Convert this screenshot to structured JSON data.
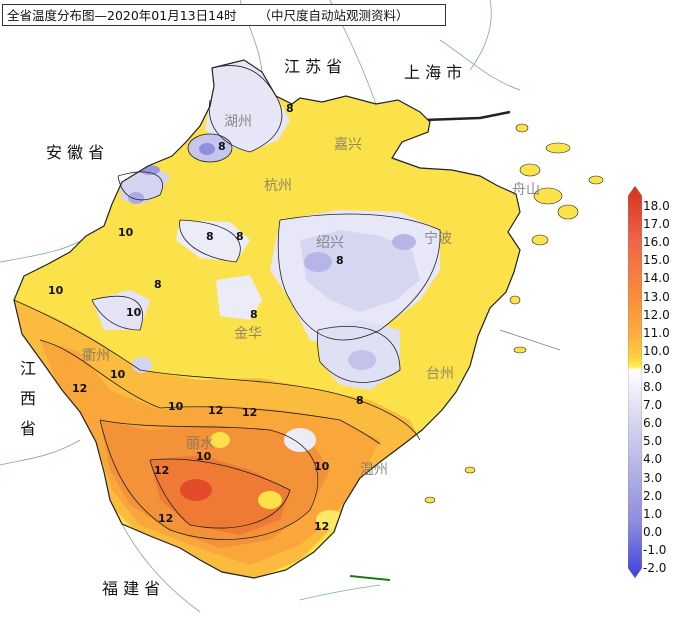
{
  "title": {
    "main": "全省温度分布图—2020年01月13日14时",
    "source": "（中尺度自动站观测资料）"
  },
  "regions": {
    "jiangsu": "江 苏 省",
    "shanghai": "上 海 市",
    "anhui": "安 徽 省",
    "jiangxi": [
      "江",
      "西",
      "省"
    ],
    "fujian": "福 建 省"
  },
  "cities": [
    "湖州",
    "嘉兴",
    "杭州",
    "绍兴",
    "宁波",
    "金华",
    "衢州",
    "台州",
    "丽水",
    "温州",
    "舟山"
  ],
  "contour_labels": [
    "8",
    "10",
    "12"
  ],
  "legend": {
    "ticks": [
      "18.0",
      "17.0",
      "16.0",
      "15.0",
      "14.0",
      "13.0",
      "12.0",
      "11.0",
      "10.0",
      "9.0",
      "8.0",
      "7.0",
      "6.0",
      "5.0",
      "4.0",
      "3.0",
      "2.0",
      "1.0",
      "0.0",
      "-1.0",
      "-2.0"
    ],
    "colors": [
      "#d7301f",
      "#ef6548",
      "#f98c3b",
      "#fdae3f",
      "#fdd33e",
      "#fff04a",
      "#ffffff",
      "#dcdcf2",
      "#b4b4e6",
      "#8c8cdc",
      "#3f3fe0"
    ]
  }
}
